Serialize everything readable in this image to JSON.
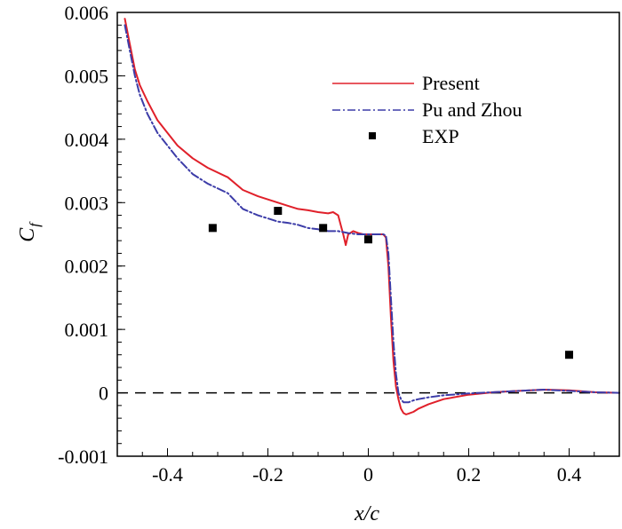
{
  "chart_data": {
    "type": "line",
    "xlabel": "x/c",
    "ylabel": {
      "main": "C",
      "sub": "f"
    },
    "xlim": [
      -0.5,
      0.5
    ],
    "ylim": [
      -0.001,
      0.006
    ],
    "xticks": [
      {
        "value": -0.4,
        "label": "-0.4"
      },
      {
        "value": -0.2,
        "label": "-0.2"
      },
      {
        "value": 0,
        "label": "0"
      },
      {
        "value": 0.2,
        "label": "0.2"
      },
      {
        "value": 0.4,
        "label": "0.4"
      }
    ],
    "yticks": [
      {
        "value": -0.001,
        "label": "-0.001"
      },
      {
        "value": 0,
        "label": "0"
      },
      {
        "value": 0.001,
        "label": "0.001"
      },
      {
        "value": 0.002,
        "label": "0.002"
      },
      {
        "value": 0.003,
        "label": "0.003"
      },
      {
        "value": 0.004,
        "label": "0.004"
      },
      {
        "value": 0.005,
        "label": "0.005"
      },
      {
        "value": 0.006,
        "label": "0.006"
      }
    ],
    "zero_line": {
      "y": 0,
      "style": "dashed",
      "color": "#000000"
    },
    "legend_position": "top-right",
    "series": [
      {
        "name": "Present",
        "style": "solid",
        "color": "#e0202a",
        "x": [
          -0.485,
          -0.475,
          -0.465,
          -0.455,
          -0.44,
          -0.42,
          -0.4,
          -0.38,
          -0.35,
          -0.32,
          -0.28,
          -0.25,
          -0.22,
          -0.2,
          -0.18,
          -0.16,
          -0.14,
          -0.12,
          -0.1,
          -0.08,
          -0.07,
          -0.06,
          -0.055,
          -0.05,
          -0.045,
          -0.04,
          -0.03,
          -0.02,
          -0.01,
          0,
          0.01,
          0.02,
          0.03,
          0.035,
          0.04,
          0.045,
          0.05,
          0.055,
          0.06,
          0.065,
          0.07,
          0.075,
          0.08,
          0.09,
          0.1,
          0.12,
          0.15,
          0.2,
          0.25,
          0.3,
          0.35,
          0.4,
          0.45,
          0.5
        ],
        "y": [
          0.0059,
          0.0055,
          0.0051,
          0.00485,
          0.0046,
          0.0043,
          0.0041,
          0.0039,
          0.0037,
          0.00355,
          0.0034,
          0.0032,
          0.0031,
          0.00305,
          0.003,
          0.00295,
          0.0029,
          0.00288,
          0.00285,
          0.00283,
          0.00285,
          0.0028,
          0.00265,
          0.0025,
          0.00233,
          0.0025,
          0.00255,
          0.00252,
          0.0025,
          0.0025,
          0.0025,
          0.0025,
          0.0025,
          0.00245,
          0.002,
          0.0012,
          0.0005,
          0.0001,
          -0.0001,
          -0.00025,
          -0.00032,
          -0.00034,
          -0.00033,
          -0.0003,
          -0.00025,
          -0.00018,
          -0.0001,
          -3e-05,
          1e-05,
          3e-05,
          5e-05,
          4e-05,
          1e-05,
          0.0
        ]
      },
      {
        "name": "Pu and Zhou",
        "style": "dashdot",
        "color": "#3c3ca8",
        "x": [
          -0.485,
          -0.475,
          -0.465,
          -0.455,
          -0.44,
          -0.42,
          -0.4,
          -0.38,
          -0.35,
          -0.32,
          -0.28,
          -0.25,
          -0.22,
          -0.2,
          -0.18,
          -0.16,
          -0.14,
          -0.12,
          -0.1,
          -0.08,
          -0.06,
          -0.04,
          -0.02,
          0,
          0.02,
          0.03,
          0.035,
          0.04,
          0.045,
          0.05,
          0.055,
          0.06,
          0.065,
          0.07,
          0.08,
          0.09,
          0.1,
          0.12,
          0.15,
          0.2,
          0.25,
          0.3,
          0.35,
          0.4,
          0.45,
          0.5
        ],
        "y": [
          0.0058,
          0.0054,
          0.005,
          0.0047,
          0.0044,
          0.0041,
          0.0039,
          0.0037,
          0.00345,
          0.0033,
          0.00315,
          0.0029,
          0.0028,
          0.00275,
          0.0027,
          0.00268,
          0.00265,
          0.0026,
          0.00258,
          0.00255,
          0.00255,
          0.00252,
          0.0025,
          0.0025,
          0.0025,
          0.0025,
          0.00248,
          0.0022,
          0.0015,
          0.0008,
          0.0003,
          0.0,
          -0.0001,
          -0.00015,
          -0.00015,
          -0.00012,
          -0.0001,
          -7e-05,
          -4e-05,
          -1e-05,
          1e-05,
          3e-05,
          5e-05,
          3e-05,
          1e-05,
          0.0
        ]
      }
    ],
    "scatter": {
      "name": "EXP",
      "color": "#000000",
      "x": [
        -0.31,
        -0.18,
        -0.09,
        0.0,
        0.4
      ],
      "y": [
        0.0026,
        0.00287,
        0.0026,
        0.00242,
        0.0006
      ]
    }
  }
}
